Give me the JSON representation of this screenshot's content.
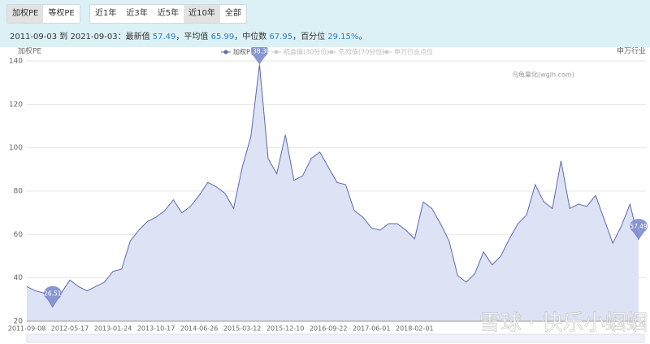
{
  "tabs": [
    "加权PE",
    "等权PE"
  ],
  "tab_selected": 0,
  "ranges": [
    "近1年",
    "近3年",
    "近5年",
    "近10年",
    "全部"
  ],
  "range_selected": 3,
  "summary": {
    "period": "2011-09-03 到 2021-09-03：",
    "items": [
      {
        "label": "最新值 ",
        "value": "57.49",
        "sep": "，"
      },
      {
        "label": "平均值 ",
        "value": "65.99",
        "sep": "，"
      },
      {
        "label": "中位数 ",
        "value": "67.95",
        "sep": "，"
      },
      {
        "label": "百分位 ",
        "value": "29.15%",
        "sep": "。"
      }
    ]
  },
  "chart_data": {
    "type": "area",
    "y_axis_label": "加权PE",
    "y2_axis_label": "申万行业",
    "watermark": "乌龟量化(wglh.com)",
    "overlay_text": "雪球 · 快乐小蝈蝈",
    "hidden_series": [
      "机会值(30分位)",
      "危险值(70分位)",
      "申万行业点位"
    ],
    "categories": [
      "2011-09-08",
      null,
      null,
      null,
      null,
      "2012-05-17",
      null,
      null,
      null,
      null,
      "2013-01-24",
      null,
      null,
      null,
      null,
      "2013-10-17",
      null,
      null,
      null,
      null,
      "2014-06-26",
      null,
      null,
      null,
      null,
      "2015-03-12",
      null,
      null,
      null,
      null,
      "2015-12-10",
      null,
      null,
      null,
      null,
      "2016-09-22",
      null,
      null,
      null,
      null,
      "2017-06-01",
      null,
      null,
      null,
      null,
      "2018-02-01",
      null,
      null,
      null,
      null,
      null,
      null,
      null,
      null,
      null,
      null,
      null,
      null,
      null,
      null,
      null,
      null,
      null,
      null,
      null,
      null,
      null,
      null,
      null,
      null,
      null,
      null
    ],
    "series": [
      {
        "name": "加权PE",
        "color": "#5a6ab0",
        "fill": "#dde2f4",
        "values": [
          36,
          34,
          33,
          26.51,
          33,
          39,
          36,
          34,
          36,
          38,
          43,
          44,
          57,
          62,
          66,
          68,
          71,
          76,
          70,
          73,
          78,
          84,
          82,
          79,
          72,
          91,
          105,
          138.36,
          95,
          88,
          106,
          85,
          87,
          95,
          98,
          91,
          84,
          83,
          71,
          68,
          63,
          62,
          65,
          65,
          62,
          58,
          75,
          72,
          65,
          57,
          41,
          38,
          42,
          52,
          46,
          50,
          58,
          65,
          69,
          83,
          75,
          72,
          94,
          72,
          74,
          73,
          78,
          67,
          56,
          64,
          74,
          57.49
        ]
      }
    ],
    "ylim": [
      20,
      140
    ],
    "yticks": [
      20,
      40,
      60,
      80,
      100,
      120,
      140
    ],
    "grid": true
  }
}
